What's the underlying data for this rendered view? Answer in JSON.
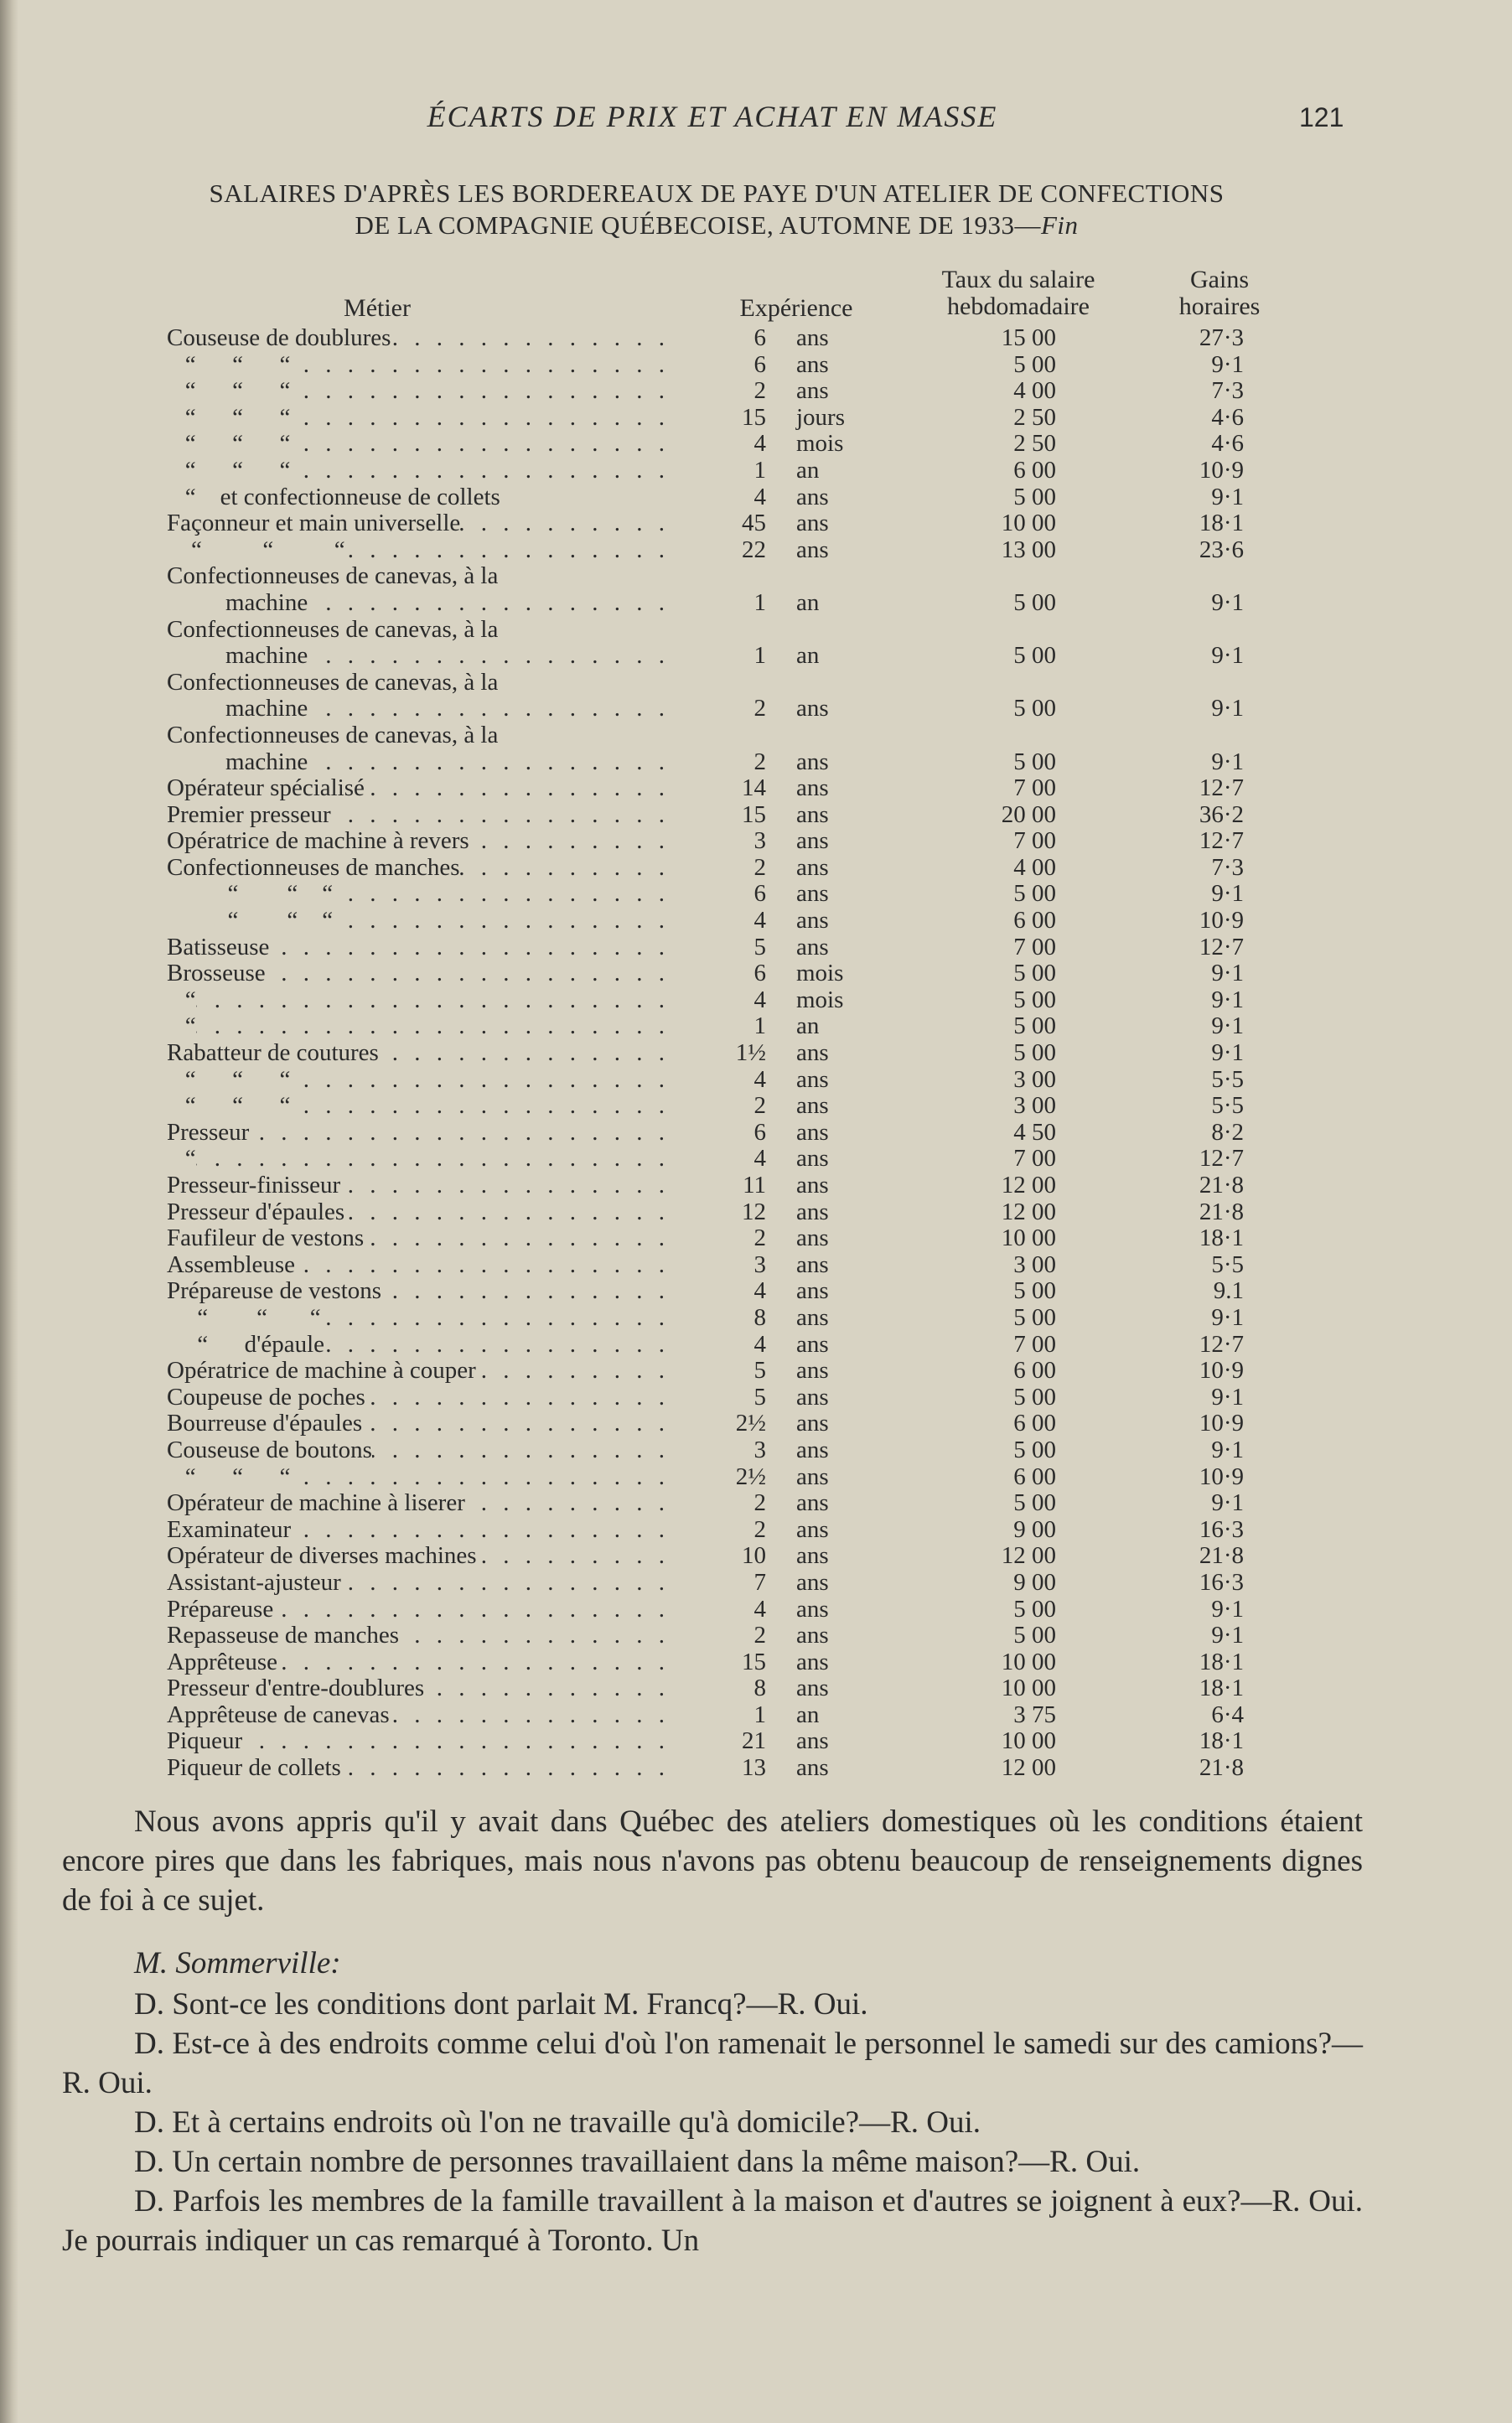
{
  "header": {
    "running_title": "ÉCARTS DE PRIX ET ACHAT EN MASSE",
    "page_number": "121"
  },
  "table": {
    "title_line1": "SALAIRES D'APRÈS LES BORDEREAUX DE PAYE D'UN ATELIER DE CONFECTIONS",
    "title_line2": "DE LA COMPAGNIE QUÉBECOISE, AUTOMNE DE 1933—",
    "title_suffix": "Fin",
    "headers": {
      "metier": "Métier",
      "experience": "Expérience",
      "taux": "Taux du salaire hebdomadaire",
      "gains": "Gains horaires"
    },
    "rows": [
      {
        "label": "Couseuse de doublures",
        "num": "6",
        "unit": "ans",
        "taux": "15 00",
        "gains": "27·3"
      },
      {
        "label": "   “      “      “",
        "num": "6",
        "unit": "ans",
        "taux": "5 00",
        "gains": "9·1"
      },
      {
        "label": "   “      “      “",
        "num": "2",
        "unit": "ans",
        "taux": "4 00",
        "gains": "7·3"
      },
      {
        "label": "   “      “      “",
        "num": "15",
        "unit": "jours",
        "taux": "2 50",
        "gains": "4·6"
      },
      {
        "label": "   “      “      “",
        "num": "4",
        "unit": "mois",
        "taux": "2 50",
        "gains": "4·6"
      },
      {
        "label": "   “      “      “",
        "num": "1",
        "unit": "an",
        "taux": "6 00",
        "gains": "10·9"
      },
      {
        "label": "   “    et confectionneuse de collets",
        "num": "4",
        "unit": "ans",
        "taux": "5 00",
        "gains": "9·1",
        "noleader": true
      },
      {
        "label": "Façonneur et main universelle",
        "num": "45",
        "unit": "ans",
        "taux": "10 00",
        "gains": "18·1"
      },
      {
        "label": "    “          “          “",
        "num": "22",
        "unit": "ans",
        "taux": "13 00",
        "gains": "23·6"
      },
      {
        "label": "Confectionneuses de canevas, à la",
        "label2": "machine",
        "num": "1",
        "unit": "an",
        "taux": "5 00",
        "gains": "9·1"
      },
      {
        "label": "Confectionneuses de canevas, à la",
        "label2": "machine",
        "num": "1",
        "unit": "an",
        "taux": "5 00",
        "gains": "9·1"
      },
      {
        "label": "Confectionneuses de canevas, à la",
        "label2": "machine",
        "num": "2",
        "unit": "ans",
        "taux": "5 00",
        "gains": "9·1"
      },
      {
        "label": "Confectionneuses de canevas, à la",
        "label2": "machine",
        "num": "2",
        "unit": "ans",
        "taux": "5 00",
        "gains": "9·1"
      },
      {
        "label": "Opérateur spécialisé",
        "num": "14",
        "unit": "ans",
        "taux": "7 00",
        "gains": "12·7"
      },
      {
        "label": "Premier presseur",
        "num": "15",
        "unit": "ans",
        "taux": "20 00",
        "gains": "36·2"
      },
      {
        "label": "Opératrice de machine à revers",
        "num": "3",
        "unit": "ans",
        "taux": "7 00",
        "gains": "12·7"
      },
      {
        "label": "Confectionneuses de manches",
        "num": "2",
        "unit": "ans",
        "taux": "4 00",
        "gains": "7·3"
      },
      {
        "label": "          “        “    “",
        "num": "6",
        "unit": "ans",
        "taux": "5 00",
        "gains": "9·1"
      },
      {
        "label": "          “        “    “",
        "num": "4",
        "unit": "ans",
        "taux": "6 00",
        "gains": "10·9"
      },
      {
        "label": "Batisseuse",
        "num": "5",
        "unit": "ans",
        "taux": "7 00",
        "gains": "12·7"
      },
      {
        "label": "Brosseuse",
        "num": "6",
        "unit": "mois",
        "taux": "5 00",
        "gains": "9·1"
      },
      {
        "label": "   “",
        "num": "4",
        "unit": "mois",
        "taux": "5 00",
        "gains": "9·1"
      },
      {
        "label": "   “",
        "num": "1",
        "unit": "an",
        "taux": "5 00",
        "gains": "9·1"
      },
      {
        "label": "Rabatteur de coutures",
        "num": "1½",
        "unit": "ans",
        "taux": "5 00",
        "gains": "9·1"
      },
      {
        "label": "   “      “      “",
        "num": "4",
        "unit": "ans",
        "taux": "3 00",
        "gains": "5·5"
      },
      {
        "label": "   “      “      “",
        "num": "2",
        "unit": "ans",
        "taux": "3 00",
        "gains": "5·5"
      },
      {
        "label": "Presseur",
        "num": "6",
        "unit": "ans",
        "taux": "4 50",
        "gains": "8·2"
      },
      {
        "label": "   “",
        "num": "4",
        "unit": "ans",
        "taux": "7 00",
        "gains": "12·7"
      },
      {
        "label": "Presseur-finisseur",
        "num": "11",
        "unit": "ans",
        "taux": "12 00",
        "gains": "21·8"
      },
      {
        "label": "Presseur d'épaules",
        "num": "12",
        "unit": "ans",
        "taux": "12 00",
        "gains": "21·8"
      },
      {
        "label": "Faufileur de vestons",
        "num": "2",
        "unit": "ans",
        "taux": "10 00",
        "gains": "18·1"
      },
      {
        "label": "Assembleuse",
        "num": "3",
        "unit": "ans",
        "taux": "3 00",
        "gains": "5·5"
      },
      {
        "label": "Prépareuse de vestons",
        "num": "4",
        "unit": "ans",
        "taux": "5 00",
        "gains": "9.1"
      },
      {
        "label": "     “        “       “",
        "num": "8",
        "unit": "ans",
        "taux": "5 00",
        "gains": "9·1"
      },
      {
        "label": "     “      d'épaule",
        "num": "4",
        "unit": "ans",
        "taux": "7 00",
        "gains": "12·7"
      },
      {
        "label": "Opératrice de machine à couper",
        "num": "5",
        "unit": "ans",
        "taux": "6 00",
        "gains": "10·9"
      },
      {
        "label": "Coupeuse de poches",
        "num": "5",
        "unit": "ans",
        "taux": "5 00",
        "gains": "9·1"
      },
      {
        "label": "Bourreuse d'épaules",
        "num": "2½",
        "unit": "ans",
        "taux": "6 00",
        "gains": "10·9"
      },
      {
        "label": "Couseuse de boutons",
        "num": "3",
        "unit": "ans",
        "taux": "5 00",
        "gains": "9·1"
      },
      {
        "label": "   “      “      “",
        "num": "2½",
        "unit": "ans",
        "taux": "6 00",
        "gains": "10·9"
      },
      {
        "label": "Opérateur de machine à liserer",
        "num": "2",
        "unit": "ans",
        "taux": "5 00",
        "gains": "9·1"
      },
      {
        "label": "Examinateur",
        "num": "2",
        "unit": "ans",
        "taux": "9 00",
        "gains": "16·3"
      },
      {
        "label": "Opérateur de diverses machines",
        "num": "10",
        "unit": "ans",
        "taux": "12 00",
        "gains": "21·8"
      },
      {
        "label": "Assistant-ajusteur",
        "num": "7",
        "unit": "ans",
        "taux": "9 00",
        "gains": "16·3"
      },
      {
        "label": "Prépareuse",
        "num": "4",
        "unit": "ans",
        "taux": "5 00",
        "gains": "9·1"
      },
      {
        "label": "Repasseuse de manches",
        "num": "2",
        "unit": "ans",
        "taux": "5 00",
        "gains": "9·1"
      },
      {
        "label": "Apprêteuse",
        "num": "15",
        "unit": "ans",
        "taux": "10 00",
        "gains": "18·1"
      },
      {
        "label": "Presseur d'entre-doublures",
        "num": "8",
        "unit": "ans",
        "taux": "10 00",
        "gains": "18·1"
      },
      {
        "label": "Apprêteuse de canevas",
        "num": "1",
        "unit": "an",
        "taux": "3 75",
        "gains": "6·4"
      },
      {
        "label": "Piqueur",
        "num": "21",
        "unit": "ans",
        "taux": "10 00",
        "gains": "18·1"
      },
      {
        "label": "Piqueur de collets",
        "num": "13",
        "unit": "ans",
        "taux": "12 00",
        "gains": "21·8"
      }
    ]
  },
  "body": {
    "paragraph1": "Nous avons appris qu'il y avait dans Québec des ateliers domestiques où les conditions étaient encore pires que dans les fabriques, mais nous n'avons pas obtenu beaucoup de renseignements dignes de foi à ce sujet.",
    "speaker": "M. Sommerville:",
    "qa": [
      "D. Sont-ce les conditions dont parlait M. Francq?—R. Oui.",
      "D. Est-ce à des endroits comme celui d'où l'on ramenait le personnel le samedi sur des camions?—R. Oui.",
      "D. Et à certains endroits où l'on ne travaille qu'à domicile?—R. Oui.",
      "D. Un certain nombre de personnes travaillaient dans la même maison?—R. Oui.",
      "D. Parfois les membres de la famille travaillent à la maison et d'autres se joignent à eux?—R. Oui. Je pourrais indiquer un cas remarqué à Toronto. Un"
    ]
  }
}
